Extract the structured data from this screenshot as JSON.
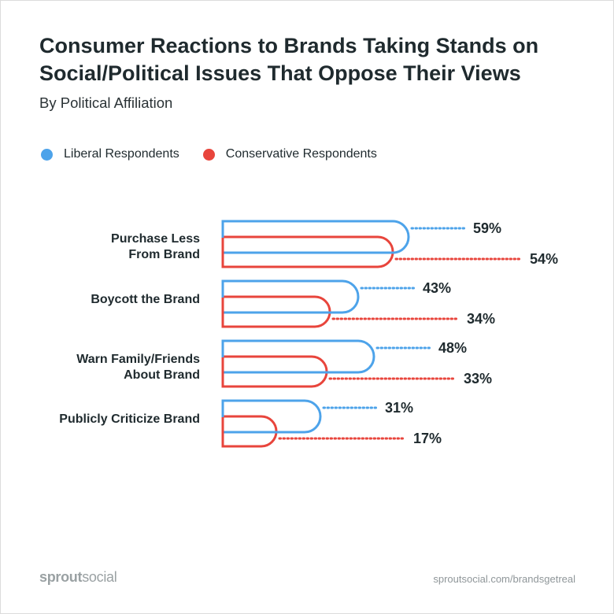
{
  "header": {
    "title_line1": "Consumer Reactions to Brands Taking Stands on",
    "title_line2": "Social/Political Issues That Oppose Their Views",
    "subtitle": "By Political Affiliation"
  },
  "legend": {
    "liberal_label": "Liberal Respondents",
    "conservative_label": "Conservative Respondents"
  },
  "labels": {
    "cat1_line1": "Purchase Less",
    "cat1_line2": "From Brand",
    "cat2_line1": "Boycott the Brand",
    "cat3_line1": "Warn Family/Friends",
    "cat3_line2": "About Brand",
    "cat4_line1": "Publicly Criticize Brand"
  },
  "colors": {
    "liberal": "#4da3ea",
    "conservative": "#e8453c",
    "text": "#1f2a2e"
  },
  "chart_data": {
    "type": "bar",
    "title": "Consumer Reactions to Brands Taking Stands on Social/Political Issues That Oppose Their Views",
    "subtitle": "By Political Affiliation",
    "categories": [
      "Purchase Less From Brand",
      "Boycott the Brand",
      "Warn Family/Friends About Brand",
      "Publicly Criticize Brand"
    ],
    "series": [
      {
        "name": "Liberal Respondents",
        "values": [
          59,
          43,
          48,
          31
        ],
        "value_labels": [
          "59%",
          "43%",
          "48%",
          "31%"
        ]
      },
      {
        "name": "Conservative Respondents",
        "values": [
          54,
          34,
          33,
          17
        ],
        "value_labels": [
          "54%",
          "34%",
          "33%",
          "17%"
        ]
      }
    ],
    "unit": "%",
    "orientation": "horizontal",
    "legend_position": "top-left",
    "grid": false
  },
  "footer": {
    "brand_part1": "sprout",
    "brand_part2": "social",
    "url": "sproutsocial.com/brandsgetreal"
  }
}
